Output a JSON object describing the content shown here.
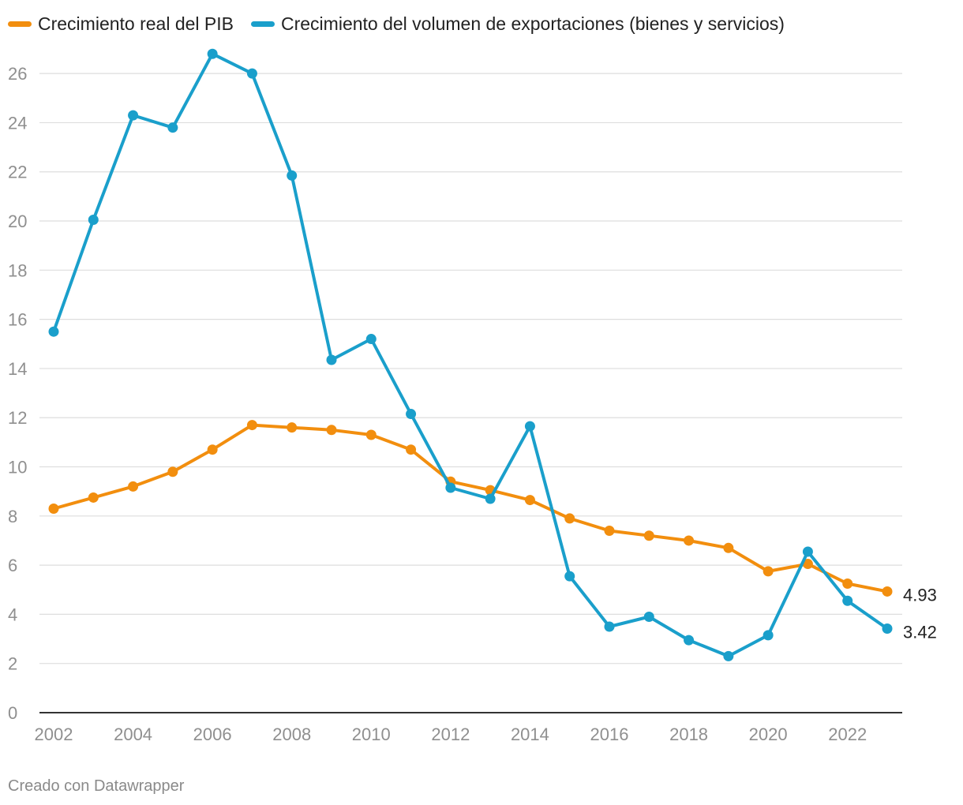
{
  "chart_data": {
    "type": "line",
    "x": [
      2002,
      2003,
      2004,
      2005,
      2006,
      2007,
      2008,
      2009,
      2010,
      2011,
      2012,
      2013,
      2014,
      2015,
      2016,
      2017,
      2018,
      2019,
      2020,
      2021,
      2022,
      2023
    ],
    "series": [
      {
        "name": "Crecimiento real del PIB",
        "color": "#f28e0e",
        "values": [
          8.3,
          8.75,
          9.2,
          9.8,
          10.7,
          11.7,
          11.6,
          11.5,
          11.3,
          10.7,
          9.4,
          9.05,
          8.65,
          7.9,
          7.4,
          7.2,
          7.0,
          6.7,
          5.75,
          6.05,
          5.25,
          4.93
        ]
      },
      {
        "name": "Crecimiento del volumen de exportaciones (bienes y servicios)",
        "color": "#1a9fcb",
        "values": [
          15.5,
          20.05,
          24.3,
          23.8,
          26.8,
          26.0,
          21.85,
          14.35,
          15.2,
          12.15,
          9.15,
          8.7,
          11.65,
          5.55,
          3.5,
          3.9,
          2.95,
          2.3,
          3.15,
          6.55,
          4.55,
          3.42
        ]
      }
    ],
    "end_labels": [
      "4.93",
      "3.42"
    ],
    "y_ticks": [
      0,
      2,
      4,
      6,
      8,
      10,
      12,
      14,
      16,
      18,
      20,
      22,
      24,
      26
    ],
    "x_ticks": [
      2002,
      2004,
      2006,
      2008,
      2010,
      2012,
      2014,
      2016,
      2018,
      2020,
      2022
    ],
    "ylim": [
      0,
      27
    ],
    "grid": true,
    "legend_position": "top-left",
    "title": "",
    "xlabel": "",
    "ylabel": ""
  },
  "legend": {
    "gdp_label": "Crecimiento real del PIB",
    "exports_label": "Crecimiento del volumen de exportaciones (bienes y servicios)"
  },
  "footer": {
    "credit": "Creado con Datawrapper"
  }
}
